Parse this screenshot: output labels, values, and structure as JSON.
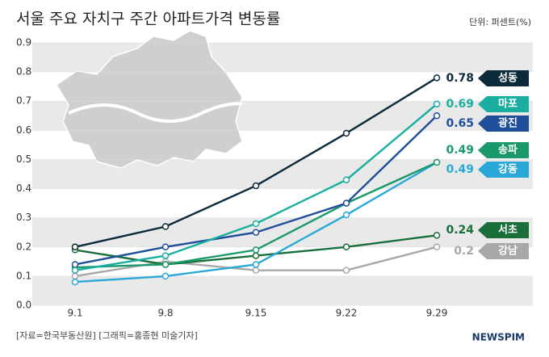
{
  "chart_data": {
    "type": "line",
    "title": "서울 주요 자치구 주간 아파트가격 변동률",
    "unit": "단위: 퍼센트(%)",
    "source": "[자료=한국부동산원] [그래픽=홍종현 미술기자]",
    "logo": "NEWSPIM",
    "categories": [
      "9.1",
      "9.8",
      "9.15",
      "9.22",
      "9.29"
    ],
    "series": [
      {
        "name": "성동",
        "color": "#0d2a3a",
        "values": [
          0.2,
          0.27,
          0.41,
          0.59,
          0.78
        ]
      },
      {
        "name": "마포",
        "color": "#1aaea0",
        "values": [
          0.12,
          0.17,
          0.28,
          0.43,
          0.69
        ]
      },
      {
        "name": "광진",
        "color": "#1f4e9a",
        "values": [
          0.14,
          0.2,
          0.25,
          0.35,
          0.65
        ]
      },
      {
        "name": "송파",
        "color": "#1a9a6a",
        "values": [
          0.13,
          0.14,
          0.19,
          0.35,
          0.49
        ]
      },
      {
        "name": "강동",
        "color": "#2aa8d8",
        "values": [
          0.08,
          0.1,
          0.14,
          0.31,
          0.49
        ]
      },
      {
        "name": "서초",
        "color": "#1a6e3a",
        "values": [
          0.19,
          0.14,
          0.17,
          0.2,
          0.24
        ]
      },
      {
        "name": "강남",
        "color": "#a8a8a8",
        "values": [
          0.1,
          0.15,
          0.12,
          0.12,
          0.2
        ]
      }
    ],
    "ylim": [
      0,
      0.9
    ],
    "yticks": [
      {
        "value": 0,
        "label": "0.0"
      },
      0.1,
      0.2,
      0.3,
      0.4,
      0.5,
      0.6,
      0.7,
      0.8,
      0.9
    ],
    "grid": true
  }
}
